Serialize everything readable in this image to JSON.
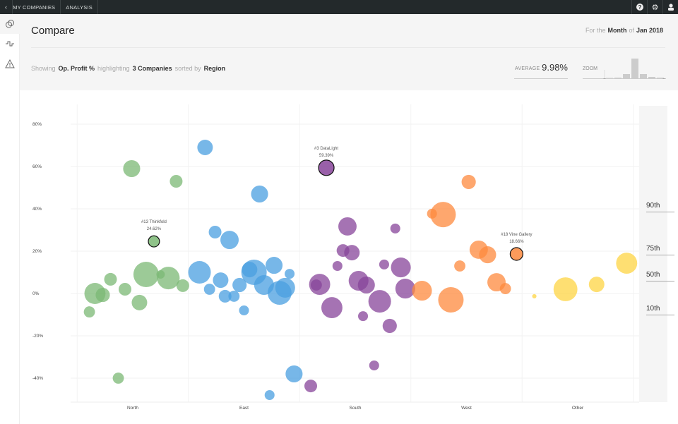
{
  "topbar": {
    "back_icon": "chevron-left-icon",
    "nav": [
      "MY COMPANIES",
      "ANALYSIS"
    ],
    "icons": [
      "help-icon",
      "gear-icon",
      "user-icon"
    ]
  },
  "sidebar": {
    "items": [
      {
        "icon": "compare-icon"
      },
      {
        "icon": "pulse-icon"
      },
      {
        "icon": "warning-icon"
      }
    ]
  },
  "header": {
    "title": "Compare",
    "period_prefix": "For the",
    "period": "Month",
    "period_of": "of",
    "date": "Jan 2018",
    "showing": "Showing",
    "metric": "Op. Profit %",
    "highlighting": "highlighting",
    "highlight_count": "3 Companies",
    "sorted_by": "sorted by",
    "sort": "Region",
    "average_label": "AVERAGE",
    "average_value": "9.98%",
    "zoom_label": "ZOOM",
    "zoom_histogram": [
      0.5,
      1,
      6,
      28,
      6,
      2,
      1
    ]
  },
  "colors": {
    "North": "#7bb874",
    "East": "#4a9fe0",
    "South": "#87449a",
    "West": "#fd8a3e",
    "Other": "#fed443"
  },
  "chart_data": {
    "type": "scatter",
    "categories": [
      "North",
      "East",
      "South",
      "West",
      "Other"
    ],
    "ylabel": "Op. Profit %",
    "yticks": [
      "-40%",
      "-20%",
      "0%",
      "20%",
      "40%",
      "60%",
      "80%"
    ],
    "ytick_values": [
      -40,
      -20,
      0,
      20,
      40,
      60,
      80
    ],
    "ylim": [
      -50,
      90
    ],
    "percentiles": [
      {
        "label": "90th",
        "value": 38
      },
      {
        "label": "75th",
        "value": 17.7
      },
      {
        "label": "50th",
        "value": 5.3
      },
      {
        "label": "10th",
        "value": -10.7
      }
    ],
    "highlights": [
      {
        "name": "#13 Thinkfold",
        "value_label": "24.62%"
      },
      {
        "name": "#3 DataLight",
        "value_label": "59.39%"
      },
      {
        "name": "#18 Vine Gallery",
        "value_label": "18.66%"
      }
    ],
    "points": [
      {
        "r": "North",
        "x": -0.01,
        "y": 59,
        "w": 67
      },
      {
        "r": "North",
        "x": 0.39,
        "y": 53,
        "w": 50
      },
      {
        "r": "North",
        "x": 0.19,
        "y": 24.62,
        "w": 44,
        "h": 0
      },
      {
        "r": "North",
        "x": 0.12,
        "y": 9,
        "w": 100
      },
      {
        "r": "North",
        "x": 0.32,
        "y": 7.3,
        "w": 89
      },
      {
        "r": "North",
        "x": 0.25,
        "y": 9,
        "w": 33
      },
      {
        "r": "North",
        "x": 0.45,
        "y": 3.7,
        "w": 50
      },
      {
        "r": "North",
        "x": -0.2,
        "y": 6.7,
        "w": 50
      },
      {
        "r": "North",
        "x": -0.07,
        "y": 2,
        "w": 50
      },
      {
        "r": "North",
        "x": -0.34,
        "y": 0,
        "w": 83
      },
      {
        "r": "North",
        "x": -0.27,
        "y": -0.7,
        "w": 56
      },
      {
        "r": "North",
        "x": 0.06,
        "y": -4.3,
        "w": 61
      },
      {
        "r": "North",
        "x": -0.39,
        "y": -8.7,
        "w": 44
      },
      {
        "r": "North",
        "x": -0.13,
        "y": -40,
        "w": 44
      },
      {
        "r": "East",
        "x": 0.65,
        "y": 69,
        "w": 61
      },
      {
        "r": "East",
        "x": 1.14,
        "y": 47,
        "w": 67
      },
      {
        "r": "East",
        "x": 0.74,
        "y": 29,
        "w": 50
      },
      {
        "r": "East",
        "x": 0.87,
        "y": 25.3,
        "w": 72
      },
      {
        "r": "East",
        "x": 0.6,
        "y": 10,
        "w": 89
      },
      {
        "r": "East",
        "x": 0.79,
        "y": 6.3,
        "w": 61
      },
      {
        "r": "East",
        "x": 0.69,
        "y": 2,
        "w": 44
      },
      {
        "r": "East",
        "x": 0.83,
        "y": -1.3,
        "w": 50
      },
      {
        "r": "East",
        "x": 0.96,
        "y": 4,
        "w": 56
      },
      {
        "r": "East",
        "x": 0.91,
        "y": -1.3,
        "w": 44
      },
      {
        "r": "East",
        "x": 1.09,
        "y": 10,
        "w": 100
      },
      {
        "r": "East",
        "x": 1.05,
        "y": 11.3,
        "w": 61
      },
      {
        "r": "East",
        "x": 1.27,
        "y": 13.3,
        "w": 67
      },
      {
        "r": "East",
        "x": 1.18,
        "y": 4,
        "w": 78
      },
      {
        "r": "East",
        "x": 1.32,
        "y": 0.3,
        "w": 94
      },
      {
        "r": "East",
        "x": 1.37,
        "y": 2.7,
        "w": 78
      },
      {
        "r": "East",
        "x": 1.41,
        "y": 9.3,
        "w": 39
      },
      {
        "r": "East",
        "x": 1.0,
        "y": -8,
        "w": 39
      },
      {
        "r": "East",
        "x": 1.45,
        "y": -38,
        "w": 67
      },
      {
        "r": "East",
        "x": 1.23,
        "y": -48,
        "w": 39
      },
      {
        "r": "South",
        "x": 1.74,
        "y": 59.39,
        "w": 61,
        "h": 1
      },
      {
        "r": "South",
        "x": 1.93,
        "y": 31.7,
        "w": 72
      },
      {
        "r": "South",
        "x": 2.36,
        "y": 30.7,
        "w": 39
      },
      {
        "r": "South",
        "x": 1.89,
        "y": 20.3,
        "w": 50
      },
      {
        "r": "South",
        "x": 1.97,
        "y": 19.3,
        "w": 61
      },
      {
        "r": "South",
        "x": 1.84,
        "y": 13,
        "w": 39
      },
      {
        "r": "South",
        "x": 2.26,
        "y": 13.7,
        "w": 39
      },
      {
        "r": "South",
        "x": 2.41,
        "y": 12.3,
        "w": 78
      },
      {
        "r": "South",
        "x": 1.68,
        "y": 4.3,
        "w": 83
      },
      {
        "r": "South",
        "x": 1.65,
        "y": 4,
        "w": 44
      },
      {
        "r": "South",
        "x": 2.03,
        "y": 6,
        "w": 78
      },
      {
        "r": "South",
        "x": 2.1,
        "y": 4,
        "w": 67
      },
      {
        "r": "South",
        "x": 2.22,
        "y": -3.7,
        "w": 89
      },
      {
        "r": "South",
        "x": 1.79,
        "y": -6.7,
        "w": 83
      },
      {
        "r": "South",
        "x": 2.45,
        "y": 2.3,
        "w": 78
      },
      {
        "r": "South",
        "x": 2.07,
        "y": -10.7,
        "w": 39
      },
      {
        "r": "South",
        "x": 2.31,
        "y": -15.3,
        "w": 56
      },
      {
        "r": "South",
        "x": 2.17,
        "y": -34,
        "w": 39
      },
      {
        "r": "South",
        "x": 1.6,
        "y": -43.7,
        "w": 50
      },
      {
        "r": "West",
        "x": 3.02,
        "y": 52.7,
        "w": 56
      },
      {
        "r": "West",
        "x": 2.79,
        "y": 37.3,
        "w": 100
      },
      {
        "r": "West",
        "x": 2.69,
        "y": 37.7,
        "w": 39
      },
      {
        "r": "West",
        "x": 3.11,
        "y": 20.7,
        "w": 72
      },
      {
        "r": "West",
        "x": 3.19,
        "y": 18.3,
        "w": 67
      },
      {
        "r": "West",
        "x": 3.45,
        "y": 18.66,
        "w": 50,
        "h": 2
      },
      {
        "r": "West",
        "x": 2.94,
        "y": 13,
        "w": 44
      },
      {
        "r": "West",
        "x": 3.27,
        "y": 5.3,
        "w": 72
      },
      {
        "r": "West",
        "x": 3.35,
        "y": 2.3,
        "w": 44
      },
      {
        "r": "West",
        "x": 2.6,
        "y": 1.3,
        "w": 78
      },
      {
        "r": "West",
        "x": 2.86,
        "y": -3,
        "w": 100
      },
      {
        "r": "Other",
        "x": 3.61,
        "y": -1.3,
        "w": 17
      },
      {
        "r": "Other",
        "x": 3.89,
        "y": 2,
        "w": 94
      },
      {
        "r": "Other",
        "x": 4.17,
        "y": 4.3,
        "w": 61
      },
      {
        "r": "Other",
        "x": 4.44,
        "y": 14.3,
        "w": 83
      }
    ]
  }
}
